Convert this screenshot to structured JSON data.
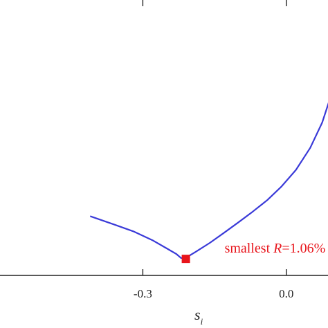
{
  "chart_data": {
    "type": "line",
    "xlabel": "s",
    "xlabel_subscript": "i",
    "ylabel": "",
    "xlim": [
      -0.6,
      0.09
    ],
    "ylim": [
      1.0,
      2.0
    ],
    "xticks": [
      -0.3,
      0.0
    ],
    "xtick_labels": [
      "-0.3",
      "0.0"
    ],
    "grid": false,
    "series": [
      {
        "color": "#3a3ad8",
        "x": [
          -0.41,
          -0.36,
          -0.32,
          -0.28,
          -0.25,
          -0.23,
          -0.22,
          -0.21,
          -0.19,
          -0.16,
          -0.13,
          -0.1,
          -0.07,
          -0.04,
          -0.01,
          0.02,
          0.05,
          0.075,
          0.09
        ],
        "y": [
          1.215,
          1.185,
          1.16,
          1.128,
          1.098,
          1.078,
          1.063,
          1.064,
          1.085,
          1.118,
          1.155,
          1.193,
          1.232,
          1.273,
          1.323,
          1.383,
          1.463,
          1.555,
          1.635
        ]
      }
    ],
    "highlight": {
      "x": -0.21,
      "y": 1.06,
      "color": "#e8141b",
      "label_prefix": "smallest ",
      "label_var": "R",
      "label_suffix": "=1.06%"
    }
  }
}
